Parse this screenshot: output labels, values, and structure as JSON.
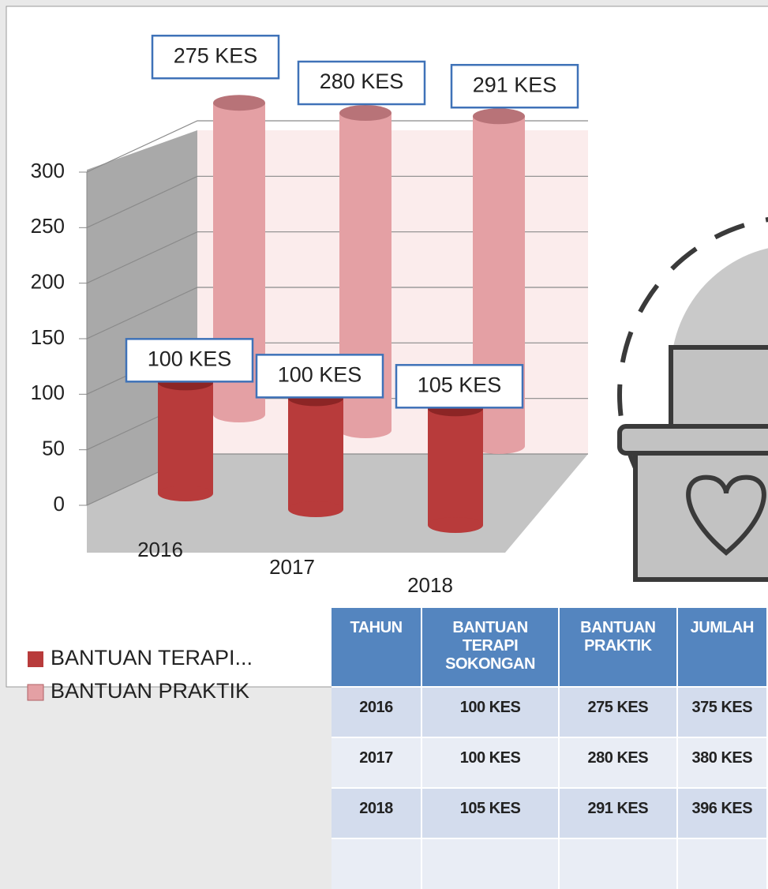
{
  "chart_data": {
    "type": "bar",
    "categories": [
      "2016",
      "2017",
      "2018"
    ],
    "series": [
      {
        "name": "BANTUAN TERAPI...",
        "color": "#b83b3b",
        "values": [
          100,
          100,
          105
        ],
        "value_labels": [
          "100 KES",
          "100 KES",
          "105 KES"
        ]
      },
      {
        "name": "BANTUAN PRAKTIK",
        "color": "#e4a0a4",
        "values": [
          275,
          280,
          291
        ],
        "value_labels": [
          "275 KES",
          "280 KES",
          "291 KES"
        ]
      }
    ],
    "ylim": [
      0,
      300
    ],
    "yticks": [
      0,
      50,
      100,
      150,
      200,
      250,
      300
    ],
    "grid": true
  },
  "table": {
    "header": [
      "TAHUN",
      "BANTUAN TERAPI SOKONGAN",
      "BANTUAN PRAKTIK",
      "JUMLAH"
    ],
    "rows": [
      [
        "2016",
        "100 KES",
        "275 KES",
        "375 KES"
      ],
      [
        "2017",
        "100 KES",
        "280 KES",
        "380 KES"
      ],
      [
        "2018",
        "105 KES",
        "291 KES",
        "396 KES"
      ]
    ]
  }
}
